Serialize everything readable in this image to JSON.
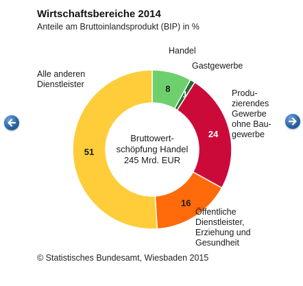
{
  "header": {
    "title": "Wirtschaftsbereiche 2014",
    "subtitle": "Anteile am Bruttoinlandsprodukt (BIP) in %"
  },
  "chart_data": {
    "type": "pie",
    "donut": true,
    "center_label": [
      "Bruttowert-",
      "schöpfung Handel",
      "245 Mrd. EUR"
    ],
    "slices": [
      {
        "label": [
          "Handel"
        ],
        "value": 8,
        "color": "#6dd06d"
      },
      {
        "label": [
          "Gastgewerbe"
        ],
        "value": 1,
        "color": "#1e6e32"
      },
      {
        "label": [
          "Produ-",
          "zierendes",
          "Gewerbe",
          "ohne Bau-",
          "gewerbe"
        ],
        "value": 24,
        "color": "#cc0a3a"
      },
      {
        "label": [
          "Öffentliche",
          "Dienstleister,",
          "Erziehung und",
          "Gesundheit"
        ],
        "value": 16,
        "color": "#ff6a0a"
      },
      {
        "label": [
          "Alle anderen",
          "Dienstleister"
        ],
        "value": 51,
        "color": "#ffcc3a"
      }
    ]
  },
  "nav": {
    "prev_icon": "arrow-left-icon",
    "next_icon": "arrow-right-icon"
  },
  "footer": {
    "source": "© Statistisches Bundesamt, Wiesbaden 2015"
  }
}
